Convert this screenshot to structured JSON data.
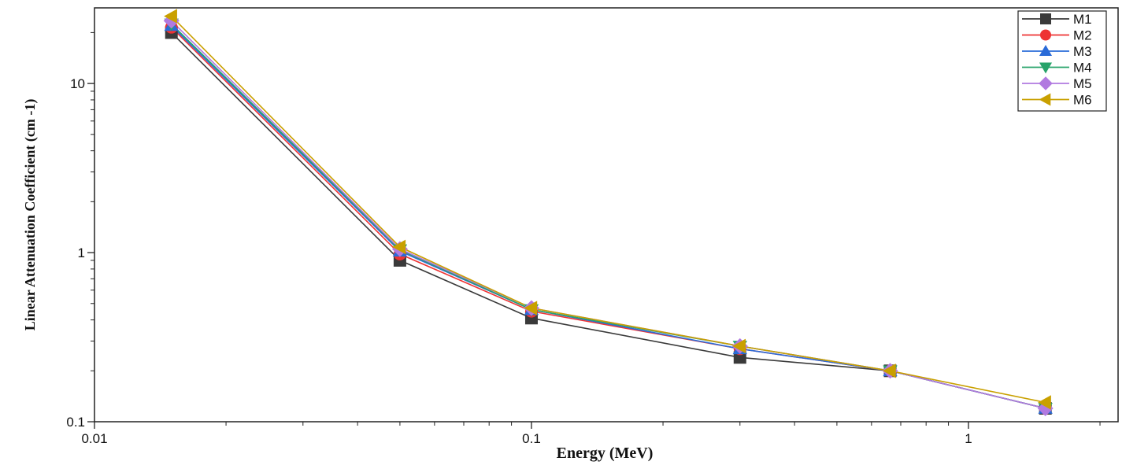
{
  "chart_data": {
    "type": "line",
    "xlabel": "Energy (MeV)",
    "ylabel": "Linear Attenuation Coefficient (cm -1)",
    "xscale": "log",
    "yscale": "log",
    "xlim": [
      0.01,
      2.2
    ],
    "ylim": [
      0.1,
      28
    ],
    "x_ticks": [
      0.01,
      0.1,
      1
    ],
    "x_tick_labels": [
      "0.01",
      "0.1",
      "1"
    ],
    "y_ticks": [
      0.1,
      1,
      10
    ],
    "y_tick_labels": [
      "0.1",
      "1",
      "10"
    ],
    "legend_position": "top-right",
    "x": [
      0.015,
      0.05,
      0.1,
      0.3,
      0.662,
      1.5
    ],
    "series": [
      {
        "name": "M1",
        "color": "#3a3a3a",
        "marker": "square",
        "values": [
          20.0,
          0.9,
          0.41,
          0.24,
          0.2,
          0.12
        ]
      },
      {
        "name": "M2",
        "color": "#ee3333",
        "marker": "circle",
        "values": [
          21.5,
          0.98,
          0.45,
          0.27,
          0.2,
          0.12
        ]
      },
      {
        "name": "M3",
        "color": "#2a6bd8",
        "marker": "triangle-up",
        "values": [
          22.0,
          1.02,
          0.46,
          0.27,
          0.2,
          0.12
        ]
      },
      {
        "name": "M4",
        "color": "#27a36a",
        "marker": "triangle-down",
        "values": [
          22.5,
          1.04,
          0.46,
          0.28,
          0.2,
          0.12
        ]
      },
      {
        "name": "M5",
        "color": "#b17ae0",
        "marker": "diamond",
        "values": [
          23.5,
          1.05,
          0.47,
          0.28,
          0.2,
          0.12
        ]
      },
      {
        "name": "M6",
        "color": "#c9a000",
        "marker": "triangle-left",
        "values": [
          25.0,
          1.08,
          0.47,
          0.28,
          0.2,
          0.13
        ]
      }
    ]
  }
}
